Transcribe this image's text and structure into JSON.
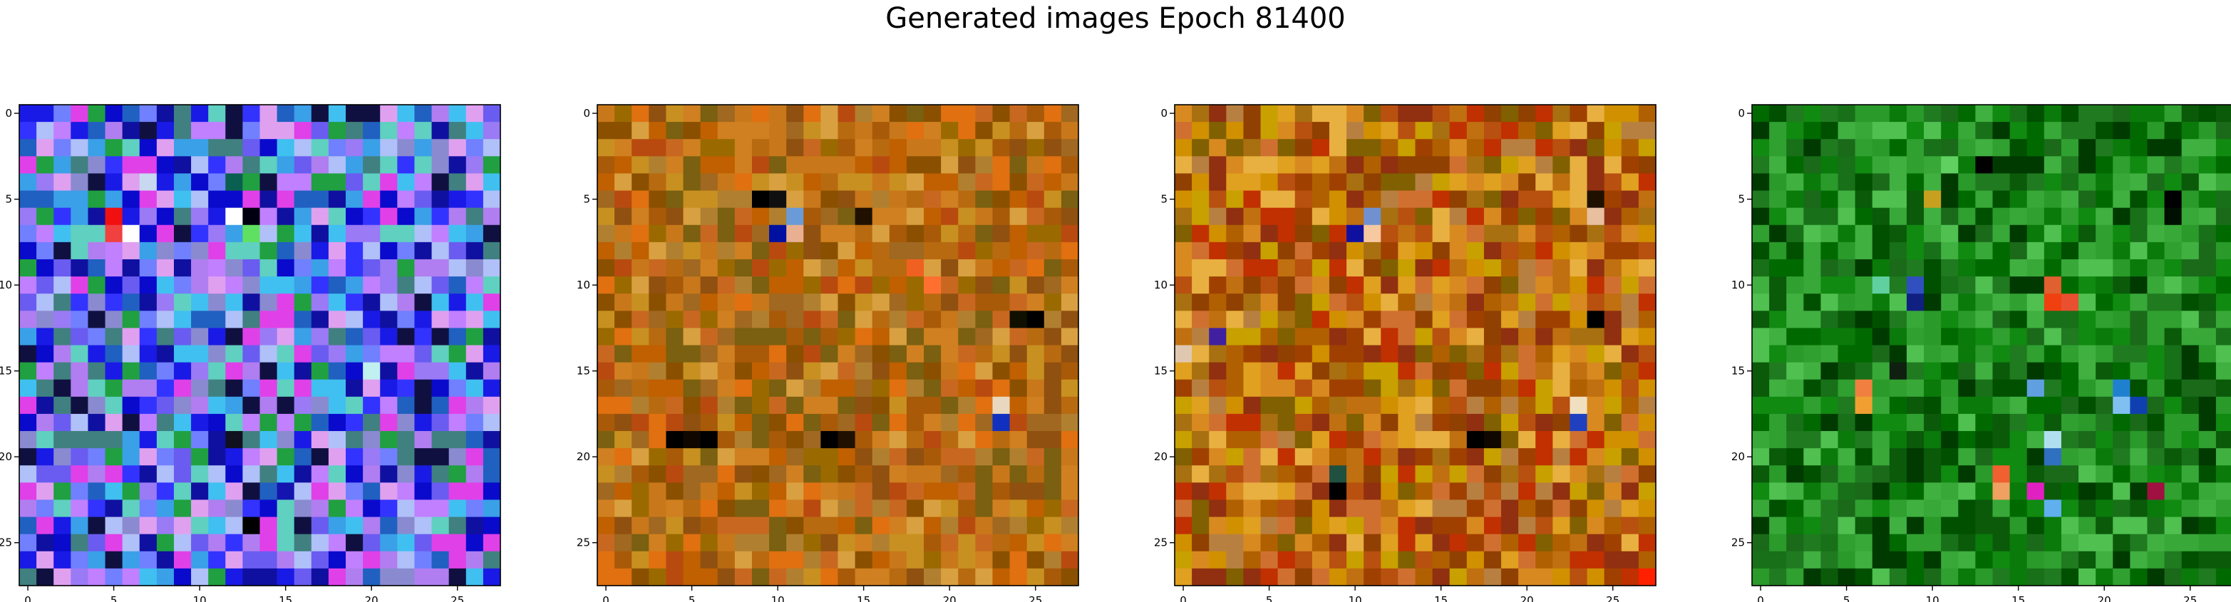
{
  "title": "Generated images Epoch 81400",
  "chart_data": {
    "type": "heatmap",
    "grid_size": [
      28,
      28
    ],
    "x_ticks": [
      "0",
      "5",
      "10",
      "15",
      "20",
      "25"
    ],
    "y_ticks": [
      "0",
      "5",
      "10",
      "15",
      "20",
      "25"
    ],
    "xlim": [
      -0.5,
      27.5
    ],
    "ylim": [
      27.5,
      -0.5
    ],
    "grid": false,
    "panels": [
      {
        "palette": [
          "#1a1ae6",
          "#3333ff",
          "#0a0acc",
          "#6a5cf0",
          "#9a7af5",
          "#b07ef0",
          "#c080ff",
          "#3aa0e8",
          "#40c0f0",
          "#2060c0",
          "#7080ff",
          "#1010a0",
          "#e040e8",
          "#e0a0f0",
          "#60d0c0",
          "#408080",
          "#8a8ad0",
          "#b0c0f8",
          "#20a040",
          "#101040"
        ],
        "accents": [
          {
            "r": 6,
            "c": 5,
            "color": "#f01010"
          },
          {
            "r": 7,
            "c": 6,
            "color": "#ffffff"
          },
          {
            "r": 7,
            "c": 5,
            "color": "#f04040"
          },
          {
            "r": 4,
            "c": 7,
            "color": "#c8d8f0"
          },
          {
            "r": 6,
            "c": 12,
            "color": "#ffffff"
          },
          {
            "r": 6,
            "c": 13,
            "color": "#000010"
          },
          {
            "r": 7,
            "c": 13,
            "color": "#60e060"
          },
          {
            "r": 19,
            "c": 12,
            "color": "#101020"
          },
          {
            "r": 24,
            "c": 13,
            "color": "#000000"
          },
          {
            "r": 15,
            "c": 20,
            "color": "#c0f0f0"
          },
          {
            "r": 4,
            "c": 12,
            "color": "#0a6050"
          },
          {
            "r": 22,
            "c": 15,
            "color": "#1414b0"
          }
        ]
      },
      {
        "palette": [
          "#b86a10",
          "#c8781a",
          "#a85a08",
          "#d08020",
          "#9a6a00",
          "#8a5000",
          "#c06000",
          "#b08030",
          "#d8a040",
          "#a06820",
          "#c89020",
          "#e07010",
          "#905010",
          "#b84a10",
          "#7a6010",
          "#c86820"
        ],
        "accents": [
          {
            "r": 5,
            "c": 9,
            "color": "#000000"
          },
          {
            "r": 5,
            "c": 10,
            "color": "#101010"
          },
          {
            "r": 6,
            "c": 11,
            "color": "#6a9ad8"
          },
          {
            "r": 7,
            "c": 11,
            "color": "#e8b090"
          },
          {
            "r": 7,
            "c": 10,
            "color": "#0010a0"
          },
          {
            "r": 6,
            "c": 15,
            "color": "#201000"
          },
          {
            "r": 19,
            "c": 4,
            "color": "#000000"
          },
          {
            "r": 19,
            "c": 5,
            "color": "#100800"
          },
          {
            "r": 19,
            "c": 6,
            "color": "#000000"
          },
          {
            "r": 19,
            "c": 13,
            "color": "#000000"
          },
          {
            "r": 19,
            "c": 14,
            "color": "#201000"
          },
          {
            "r": 18,
            "c": 23,
            "color": "#1030c0"
          },
          {
            "r": 17,
            "c": 23,
            "color": "#e8d8c0"
          },
          {
            "r": 12,
            "c": 24,
            "color": "#101000"
          },
          {
            "r": 12,
            "c": 25,
            "color": "#000000"
          },
          {
            "r": 10,
            "c": 19,
            "color": "#ff7030"
          },
          {
            "r": 9,
            "c": 18,
            "color": "#f06020"
          }
        ]
      },
      {
        "palette": [
          "#c07010",
          "#b06000",
          "#d88a20",
          "#a04000",
          "#e0a020",
          "#c8a000",
          "#904000",
          "#b85010",
          "#d07030",
          "#a87010",
          "#e8b040",
          "#c03000",
          "#806000",
          "#d09000",
          "#b88040",
          "#903010"
        ],
        "accents": [
          {
            "r": 6,
            "c": 11,
            "color": "#7090d0"
          },
          {
            "r": 7,
            "c": 11,
            "color": "#f8c8a0"
          },
          {
            "r": 7,
            "c": 10,
            "color": "#1010a0"
          },
          {
            "r": 6,
            "c": 24,
            "color": "#e8c0a0"
          },
          {
            "r": 5,
            "c": 24,
            "color": "#201000"
          },
          {
            "r": 13,
            "c": 2,
            "color": "#4020a0"
          },
          {
            "r": 14,
            "c": 0,
            "color": "#e0c8b0"
          },
          {
            "r": 21,
            "c": 9,
            "color": "#205040"
          },
          {
            "r": 22,
            "c": 9,
            "color": "#000000"
          },
          {
            "r": 19,
            "c": 17,
            "color": "#000000"
          },
          {
            "r": 19,
            "c": 18,
            "color": "#100800"
          },
          {
            "r": 18,
            "c": 23,
            "color": "#2040c0"
          },
          {
            "r": 17,
            "c": 23,
            "color": "#f0e0c0"
          },
          {
            "r": 12,
            "c": 24,
            "color": "#000000"
          },
          {
            "r": 27,
            "c": 27,
            "color": "#ff2000"
          }
        ]
      },
      {
        "palette": [
          "#108a10",
          "#0a7a0a",
          "#207a20",
          "#006a00",
          "#30a030",
          "#40b040",
          "#187018",
          "#0a5a0a",
          "#2a9a2a",
          "#50c050",
          "#003a00",
          "#1a6a1a",
          "#005000",
          "#38a838"
        ],
        "accents": [
          {
            "r": 3,
            "c": 11,
            "color": "#60d060"
          },
          {
            "r": 3,
            "c": 13,
            "color": "#000000"
          },
          {
            "r": 5,
            "c": 10,
            "color": "#c8a020"
          },
          {
            "r": 10,
            "c": 7,
            "color": "#60d0a0"
          },
          {
            "r": 10,
            "c": 9,
            "color": "#3050c0"
          },
          {
            "r": 11,
            "c": 9,
            "color": "#102080"
          },
          {
            "r": 10,
            "c": 17,
            "color": "#e06030"
          },
          {
            "r": 11,
            "c": 17,
            "color": "#f04010"
          },
          {
            "r": 11,
            "c": 18,
            "color": "#e85030"
          },
          {
            "r": 16,
            "c": 6,
            "color": "#f08040"
          },
          {
            "r": 17,
            "c": 6,
            "color": "#f0a030"
          },
          {
            "r": 15,
            "c": 8,
            "color": "#102010"
          },
          {
            "r": 16,
            "c": 16,
            "color": "#60a0e0"
          },
          {
            "r": 16,
            "c": 21,
            "color": "#2080d0"
          },
          {
            "r": 17,
            "c": 21,
            "color": "#80c0f0"
          },
          {
            "r": 17,
            "c": 22,
            "color": "#1040b0"
          },
          {
            "r": 19,
            "c": 17,
            "color": "#b0e0f0"
          },
          {
            "r": 20,
            "c": 17,
            "color": "#3070c0"
          },
          {
            "r": 21,
            "c": 14,
            "color": "#f06030"
          },
          {
            "r": 22,
            "c": 14,
            "color": "#f0a060"
          },
          {
            "r": 22,
            "c": 16,
            "color": "#e020c0"
          },
          {
            "r": 23,
            "c": 17,
            "color": "#60b0f0"
          },
          {
            "r": 22,
            "c": 23,
            "color": "#a01040"
          },
          {
            "r": 5,
            "c": 24,
            "color": "#000000"
          },
          {
            "r": 6,
            "c": 24,
            "color": "#001000"
          }
        ]
      }
    ]
  }
}
